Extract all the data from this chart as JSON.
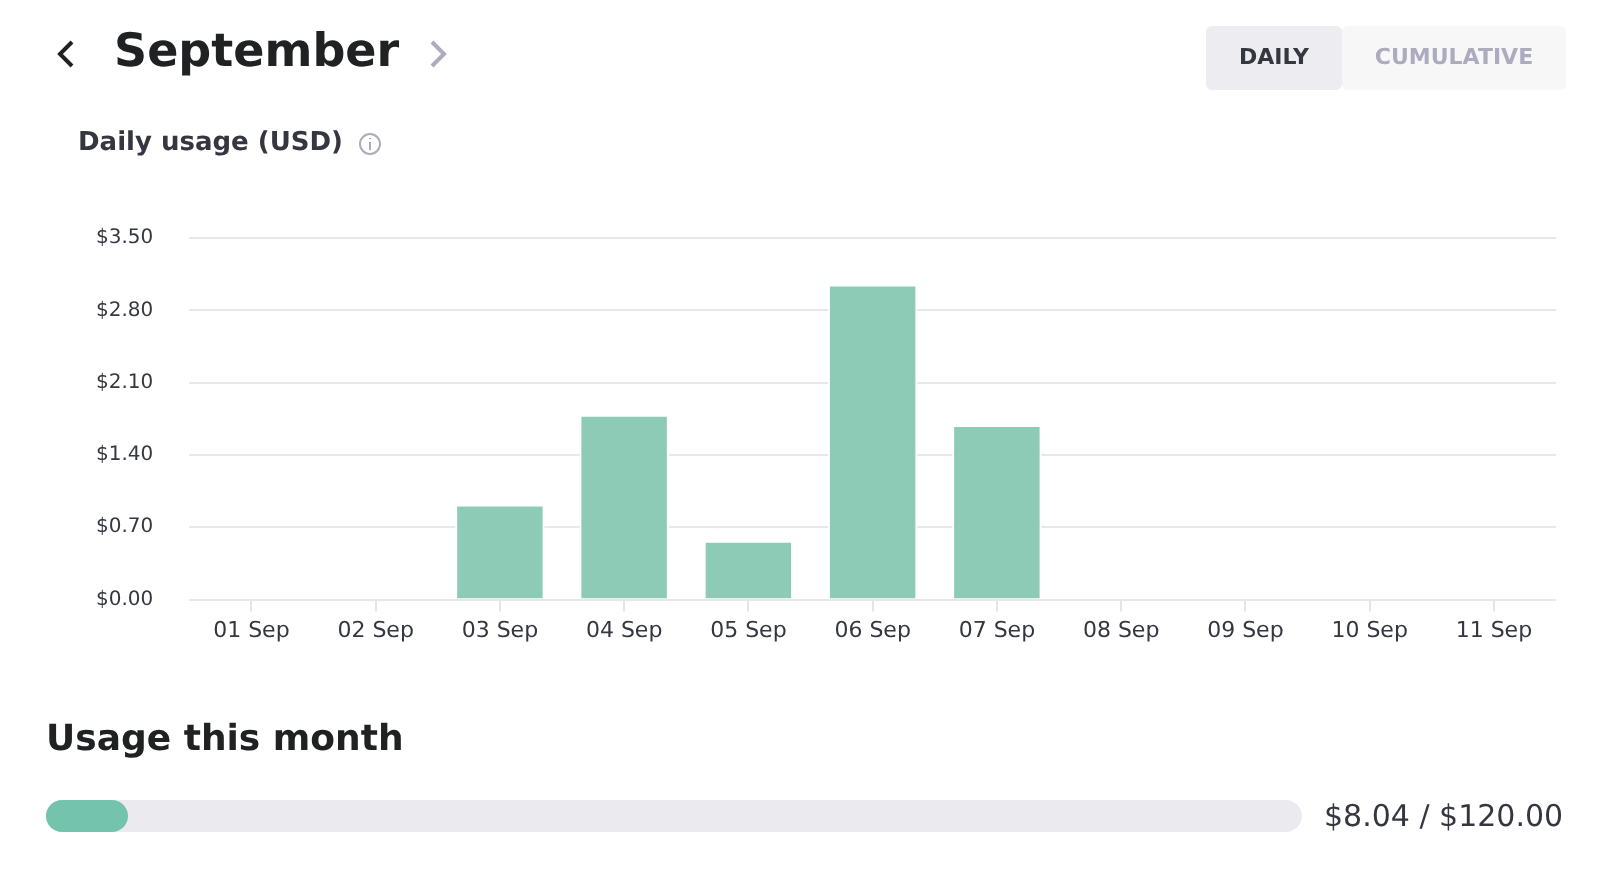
{
  "chart_data": [
    {
      "type": "bar",
      "title": "September",
      "subtitle": "Daily usage (USD)",
      "annotations": [
        "DAILY",
        "CUMULATIVE"
      ],
      "categories": [
        "01 Sep",
        "02 Sep",
        "03 Sep",
        "04 Sep",
        "05 Sep",
        "06 Sep",
        "07 Sep",
        "08 Sep",
        "09 Sep",
        "10 Sep",
        "11 Sep"
      ],
      "values": [
        0,
        0,
        0.92,
        1.79,
        0.57,
        3.05,
        1.69,
        0,
        0,
        0,
        0
      ],
      "color": "#8dcbb7",
      "ylim": [
        0,
        3.5
      ],
      "yticks": [
        {
          "value": 0,
          "label": "$0.00"
        },
        {
          "value": 0.7,
          "label": "$0.70"
        },
        {
          "value": 1.4,
          "label": "$1.40"
        },
        {
          "value": 2.1,
          "label": "$2.10"
        },
        {
          "value": 2.8,
          "label": "$2.80"
        },
        {
          "value": 3.5,
          "label": "$3.50"
        }
      ],
      "grid": "y",
      "legend": false
    },
    {
      "type": "other",
      "title": "Usage this month",
      "annotations": [
        "$8.04 / $120.00"
      ]
    }
  ]
}
